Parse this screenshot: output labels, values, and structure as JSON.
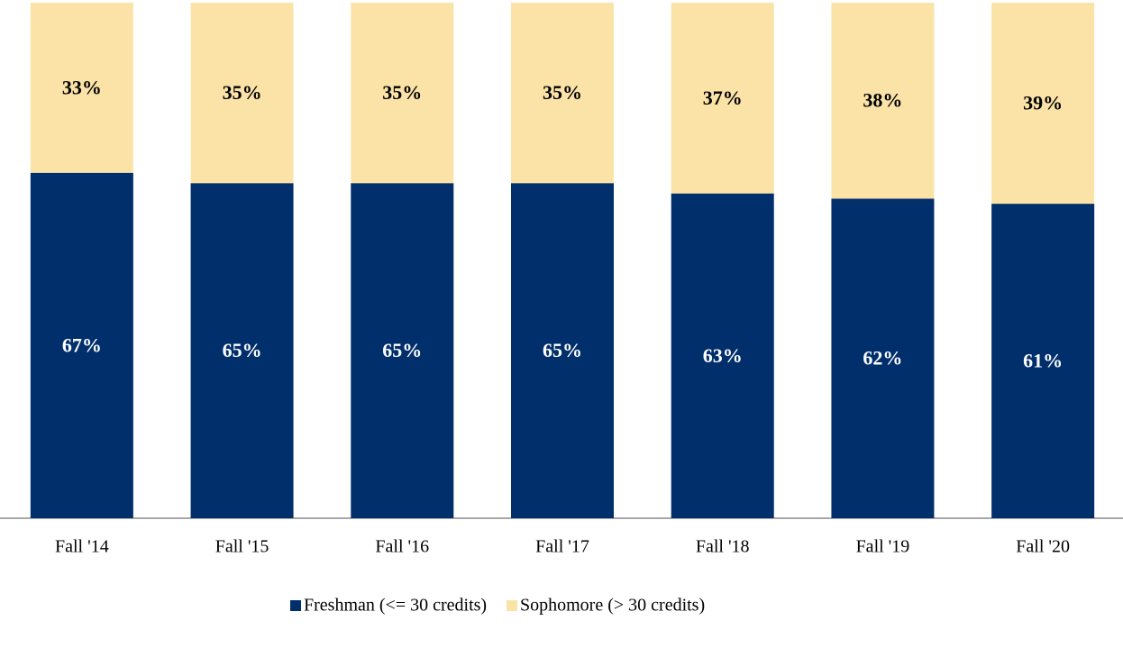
{
  "chart_data": {
    "type": "stacked_bar",
    "categories": [
      "Fall '14",
      "Fall '15",
      "Fall '16",
      "Fall '17",
      "Fall '18",
      "Fall '19",
      "Fall '20"
    ],
    "series": [
      {
        "name": "Freshman (<= 30 credits)",
        "color": "#002f6c",
        "label_color": "#ffffff",
        "values": [
          67,
          65,
          65,
          65,
          63,
          62,
          61
        ],
        "value_labels": [
          "67%",
          "65%",
          "65%",
          "65%",
          "63%",
          "62%",
          "61%"
        ]
      },
      {
        "name": "Sophomore (> 30 credits)",
        "color": "#fbe3a8",
        "label_color": "#000000",
        "values": [
          33,
          35,
          35,
          35,
          37,
          38,
          39
        ],
        "value_labels": [
          "33%",
          "35%",
          "35%",
          "35%",
          "37%",
          "38%",
          "39%"
        ]
      }
    ],
    "ylim": [
      0,
      100
    ],
    "legend": "bottom"
  }
}
